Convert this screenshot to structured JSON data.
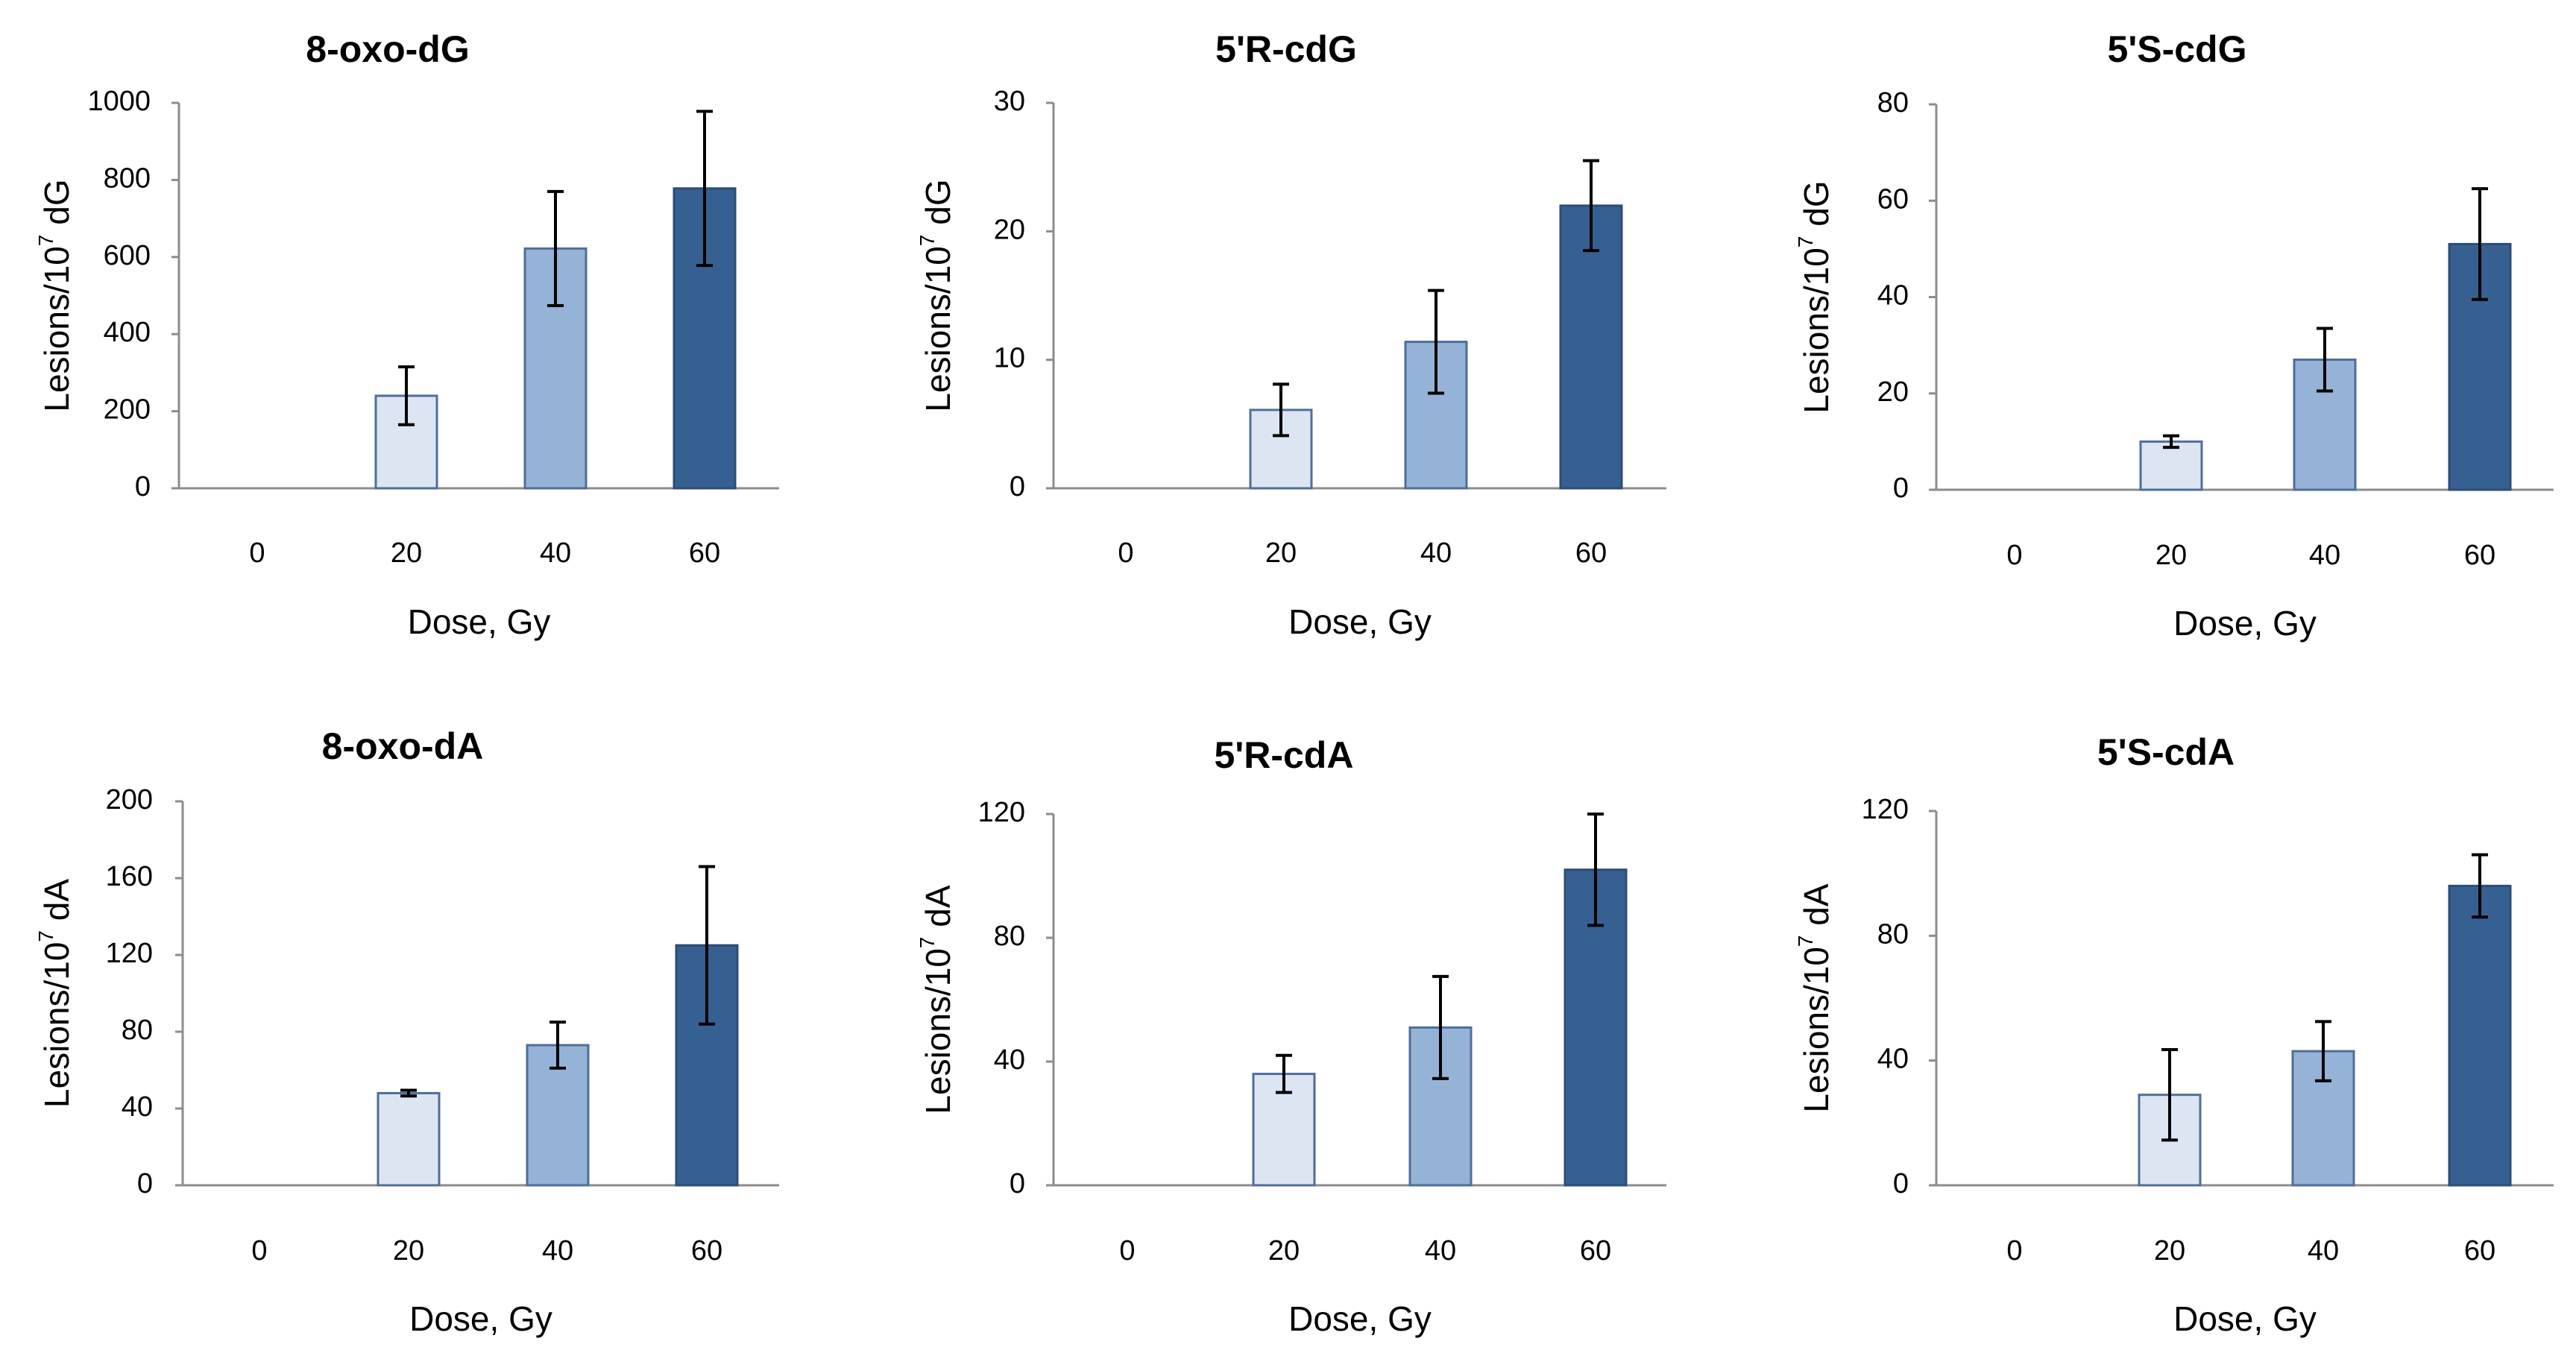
{
  "colors": {
    "bar_fill": [
      "#dce6f2",
      "#95b3d7",
      "#376092"
    ],
    "bar_stroke": [
      "#4f6e99",
      "#4f6e99",
      "#2c4d75"
    ],
    "axis": "#8c8c8c",
    "error_bar": "#000000"
  },
  "chart_data": [
    {
      "type": "bar",
      "title": "8-oxo-dG",
      "categories": [
        "0",
        "20",
        "40",
        "60"
      ],
      "values": [
        0,
        240,
        622,
        778
      ],
      "errors": [
        0,
        75,
        148,
        200
      ],
      "xlabel": "Dose, Gy",
      "ylabel_prefix": "Lesions/10",
      "ylabel_sup": "7",
      "ylabel_suffix": " dG",
      "ylim": [
        0,
        1000
      ],
      "yticks": [
        "0",
        "200",
        "400",
        "600",
        "800",
        "1000"
      ]
    },
    {
      "type": "bar",
      "title": "5'R-cdG",
      "categories": [
        "0",
        "20",
        "40",
        "60"
      ],
      "values": [
        0,
        6.1,
        11.4,
        22
      ],
      "errors": [
        0,
        2.0,
        4.0,
        3.5
      ],
      "xlabel": "Dose, Gy",
      "ylabel_prefix": "Lesions/10",
      "ylabel_sup": "7",
      "ylabel_suffix": " dG",
      "ylim": [
        0,
        30
      ],
      "yticks": [
        "0",
        "10",
        "20",
        "30"
      ]
    },
    {
      "type": "bar",
      "title": "5'S-cdG",
      "categories": [
        "0",
        "20",
        "40",
        "60"
      ],
      "values": [
        0,
        10,
        27,
        51
      ],
      "errors": [
        0,
        1.2,
        6.5,
        11.5
      ],
      "xlabel": "Dose, Gy",
      "ylabel_prefix": "Lesions/10",
      "ylabel_sup": "7",
      "ylabel_suffix": " dG",
      "ylim": [
        0,
        80
      ],
      "yticks": [
        "0",
        "20",
        "40",
        "60",
        "80"
      ]
    },
    {
      "type": "bar",
      "title": "8-oxo-dA",
      "categories": [
        "0",
        "20",
        "40",
        "60"
      ],
      "values": [
        0,
        48,
        73,
        125
      ],
      "errors": [
        0,
        1.5,
        12,
        41
      ],
      "xlabel": "Dose, Gy",
      "ylabel_prefix": "Lesions/10",
      "ylabel_sup": "7",
      "ylabel_suffix": " dA",
      "ylim": [
        0,
        200
      ],
      "yticks": [
        "0",
        "40",
        "80",
        "120",
        "160",
        "200"
      ]
    },
    {
      "type": "bar",
      "title": "5'R-cdA",
      "categories": [
        "0",
        "20",
        "40",
        "60"
      ],
      "values": [
        0,
        36,
        51,
        102
      ],
      "errors": [
        0,
        6,
        16.5,
        18
      ],
      "xlabel": "Dose, Gy",
      "ylabel_prefix": "Lesions/10",
      "ylabel_sup": "7",
      "ylabel_suffix": " dA",
      "ylim": [
        0,
        120
      ],
      "yticks": [
        "0",
        "40",
        "80",
        "120"
      ]
    },
    {
      "type": "bar",
      "title": "5'S-cdA",
      "categories": [
        "0",
        "20",
        "40",
        "60"
      ],
      "values": [
        0,
        29,
        43,
        96
      ],
      "errors": [
        0,
        14.5,
        9.5,
        10
      ],
      "xlabel": "Dose, Gy",
      "ylabel_prefix": "Lesions/10",
      "ylabel_sup": "7",
      "ylabel_suffix": " dA",
      "ylim": [
        0,
        120
      ],
      "yticks": [
        "0",
        "40",
        "80",
        "120"
      ]
    }
  ]
}
